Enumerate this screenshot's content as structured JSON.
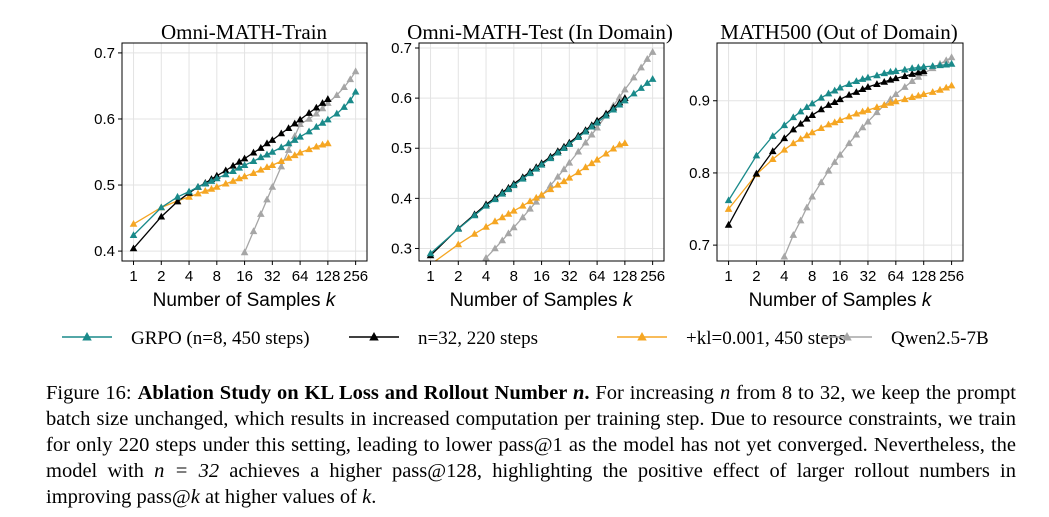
{
  "figure": {
    "legend": [
      {
        "label": "GRPO (n=8, 450 steps)",
        "color": "#1a8a8a"
      },
      {
        "label": "n=32, 220 steps",
        "color": "#000000"
      },
      {
        "label": "+kl=0.001, 450 steps",
        "color": "#f5a623"
      },
      {
        "label": "Qwen2.5-7B",
        "color": "#a6a6a6"
      }
    ],
    "caption": {
      "figure_label": "Figure 16:",
      "bold_title": "Ablation Study on KL Loss and Rollout Number ",
      "bold_var": "n",
      "bold_end": ".",
      "t1": " For increasing ",
      "v1": "n",
      "t2": " from 8 to 32, we keep the prompt batch size unchanged, which results in increased computation per training step. Due to resource constraints, we train for only 220 steps under this setting, leading to lower pass@1 as the model has not yet converged. Nevertheless, the model with ",
      "v2": "n = 32",
      "t3": " achieves a higher pass@128, highlighting the positive effect of larger rollout numbers in improving pass@",
      "v3": "k",
      "t4": " at higher values of ",
      "v4": "k",
      "t5": "."
    }
  },
  "chart_data": [
    {
      "type": "line",
      "title": "Omni-MATH-Train",
      "xlabel": "Number of Samples ",
      "xlabel_var": "k",
      "ylabel": "",
      "xscale": "log2",
      "xlim": [
        0.75,
        340
      ],
      "ylim": [
        0.385,
        0.715
      ],
      "grid": true,
      "xticks": [
        1,
        2,
        4,
        8,
        16,
        32,
        64,
        128,
        256
      ],
      "xtick_labels": [
        "1",
        "2",
        "4",
        "8",
        "16",
        "32",
        "64",
        "128",
        "256"
      ],
      "yticks": [
        0.4,
        0.5,
        0.6,
        0.7
      ],
      "ytick_labels": [
        "0.4",
        "0.5",
        "0.6",
        "0.7"
      ],
      "series": [
        {
          "name": "GRPO (n=8, 450 steps)",
          "color": "#1a8a8a",
          "k": [
            1,
            2,
            3,
            4,
            5,
            6,
            7,
            8,
            10,
            12,
            14,
            16,
            20,
            24,
            28,
            32,
            40,
            48,
            56,
            64,
            80,
            96,
            112,
            128,
            160,
            192,
            224,
            256
          ],
          "values": [
            0.424,
            0.466,
            0.482,
            0.49,
            0.497,
            0.502,
            0.506,
            0.51,
            0.516,
            0.521,
            0.526,
            0.53,
            0.536,
            0.542,
            0.546,
            0.55,
            0.557,
            0.563,
            0.568,
            0.573,
            0.581,
            0.588,
            0.594,
            0.599,
            0.608,
            0.618,
            0.628,
            0.641
          ]
        },
        {
          "name": "n=32, 220 steps",
          "color": "#000000",
          "k": [
            1,
            2,
            3,
            4,
            5,
            6,
            7,
            8,
            10,
            12,
            14,
            16,
            20,
            24,
            28,
            32,
            40,
            48,
            56,
            64,
            80,
            96,
            112,
            128
          ],
          "values": [
            0.404,
            0.452,
            0.475,
            0.488,
            0.497,
            0.503,
            0.509,
            0.514,
            0.522,
            0.529,
            0.535,
            0.54,
            0.549,
            0.556,
            0.563,
            0.568,
            0.578,
            0.586,
            0.593,
            0.599,
            0.609,
            0.617,
            0.624,
            0.63
          ]
        },
        {
          "name": "+kl=0.001, 450 steps",
          "color": "#f5a623",
          "k": [
            1,
            2,
            3,
            4,
            5,
            6,
            7,
            8,
            10,
            12,
            14,
            16,
            20,
            24,
            28,
            32,
            40,
            48,
            56,
            64,
            80,
            96,
            112,
            128
          ],
          "values": [
            0.441,
            0.466,
            0.476,
            0.482,
            0.487,
            0.491,
            0.494,
            0.497,
            0.502,
            0.506,
            0.51,
            0.513,
            0.518,
            0.523,
            0.527,
            0.53,
            0.536,
            0.541,
            0.545,
            0.549,
            0.554,
            0.558,
            0.561,
            0.563
          ]
        },
        {
          "name": "Qwen2.5-7B",
          "color": "#a6a6a6",
          "k": [
            16,
            20,
            24,
            28,
            32,
            40,
            48,
            56,
            64,
            80,
            96,
            112,
            128,
            160,
            192,
            224,
            256
          ],
          "values": [
            0.398,
            0.43,
            0.456,
            0.478,
            0.497,
            0.528,
            0.553,
            0.574,
            0.592,
            0.6,
            0.608,
            0.616,
            0.624,
            0.636,
            0.648,
            0.66,
            0.672
          ]
        }
      ]
    },
    {
      "type": "line",
      "title": "Omni-MATH-Test (In Domain)",
      "xlabel": "Number of Samples ",
      "xlabel_var": "k",
      "ylabel": "",
      "xscale": "log2",
      "xlim": [
        0.75,
        340
      ],
      "ylim": [
        0.275,
        0.71
      ],
      "grid": true,
      "xticks": [
        1,
        2,
        4,
        8,
        16,
        32,
        64,
        128,
        256
      ],
      "xtick_labels": [
        "1",
        "2",
        "4",
        "8",
        "16",
        "32",
        "64",
        "128",
        "256"
      ],
      "yticks": [
        0.3,
        0.4,
        0.5,
        0.6,
        0.7
      ],
      "ytick_labels": [
        "0.3",
        "0.4",
        "0.5",
        "0.6",
        "0.7"
      ],
      "series": [
        {
          "name": "GRPO (n=8, 450 steps)",
          "color": "#1a8a8a",
          "k": [
            1,
            2,
            3,
            4,
            5,
            6,
            7,
            8,
            10,
            12,
            14,
            16,
            20,
            24,
            28,
            32,
            40,
            48,
            56,
            64,
            80,
            96,
            112,
            128,
            160,
            192,
            224,
            256
          ],
          "values": [
            0.29,
            0.339,
            0.366,
            0.385,
            0.398,
            0.409,
            0.418,
            0.426,
            0.439,
            0.45,
            0.459,
            0.467,
            0.48,
            0.491,
            0.5,
            0.508,
            0.522,
            0.533,
            0.543,
            0.551,
            0.565,
            0.577,
            0.587,
            0.595,
            0.609,
            0.62,
            0.63,
            0.638
          ]
        },
        {
          "name": "n=32, 220 steps",
          "color": "#000000",
          "k": [
            1,
            2,
            3,
            4,
            5,
            6,
            7,
            8,
            10,
            12,
            14,
            16,
            20,
            24,
            28,
            32,
            40,
            48,
            56,
            64,
            80,
            96,
            112,
            128
          ],
          "values": [
            0.286,
            0.34,
            0.368,
            0.388,
            0.401,
            0.412,
            0.421,
            0.429,
            0.442,
            0.453,
            0.462,
            0.47,
            0.483,
            0.494,
            0.503,
            0.511,
            0.525,
            0.536,
            0.546,
            0.555,
            0.569,
            0.581,
            0.591,
            0.6
          ]
        },
        {
          "name": "+kl=0.001, 450 steps",
          "color": "#f5a623",
          "k": [
            1,
            2,
            3,
            4,
            5,
            6,
            7,
            8,
            10,
            12,
            14,
            16,
            20,
            24,
            28,
            32,
            40,
            48,
            56,
            64,
            80,
            96,
            112,
            128
          ],
          "values": [
            0.268,
            0.308,
            0.329,
            0.343,
            0.354,
            0.362,
            0.369,
            0.375,
            0.385,
            0.394,
            0.401,
            0.407,
            0.418,
            0.427,
            0.434,
            0.441,
            0.452,
            0.462,
            0.47,
            0.477,
            0.489,
            0.499,
            0.507,
            0.51
          ]
        },
        {
          "name": "Qwen2.5-7B",
          "color": "#a6a6a6",
          "k": [
            4,
            5,
            6,
            7,
            8,
            10,
            12,
            14,
            16,
            20,
            24,
            28,
            32,
            40,
            48,
            56,
            64,
            80,
            96,
            112,
            128,
            160,
            192,
            224,
            256
          ],
          "values": [
            0.281,
            0.3,
            0.316,
            0.33,
            0.342,
            0.362,
            0.379,
            0.393,
            0.405,
            0.426,
            0.443,
            0.458,
            0.471,
            0.493,
            0.511,
            0.527,
            0.541,
            0.565,
            0.585,
            0.602,
            0.617,
            0.641,
            0.661,
            0.678,
            0.692
          ]
        }
      ]
    },
    {
      "type": "line",
      "title": "MATH500 (Out of Domain)",
      "xlabel": "Number of Samples ",
      "xlabel_var": "k",
      "ylabel": "",
      "xscale": "log2",
      "xlim": [
        0.75,
        340
      ],
      "ylim": [
        0.678,
        0.98
      ],
      "grid": true,
      "xticks": [
        1,
        2,
        4,
        8,
        16,
        32,
        64,
        128,
        256
      ],
      "xtick_labels": [
        "1",
        "2",
        "4",
        "8",
        "16",
        "32",
        "64",
        "128",
        "256"
      ],
      "yticks": [
        0.7,
        0.8,
        0.9
      ],
      "ytick_labels": [
        "0.7",
        "0.8",
        "0.9"
      ],
      "series": [
        {
          "name": "GRPO (n=8, 450 steps)",
          "color": "#1a8a8a",
          "k": [
            1,
            2,
            3,
            4,
            5,
            6,
            7,
            8,
            10,
            12,
            14,
            16,
            20,
            24,
            28,
            32,
            40,
            48,
            56,
            64,
            80,
            96,
            112,
            128,
            160,
            192,
            224,
            256
          ],
          "values": [
            0.762,
            0.824,
            0.851,
            0.866,
            0.877,
            0.885,
            0.891,
            0.896,
            0.904,
            0.91,
            0.914,
            0.918,
            0.923,
            0.927,
            0.93,
            0.932,
            0.935,
            0.938,
            0.94,
            0.941,
            0.943,
            0.945,
            0.946,
            0.947,
            0.948,
            0.949,
            0.95,
            0.951
          ]
        },
        {
          "name": "n=32, 220 steps",
          "color": "#000000",
          "k": [
            1,
            2,
            3,
            4,
            5,
            6,
            7,
            8,
            10,
            12,
            14,
            16,
            20,
            24,
            28,
            32,
            40,
            48,
            56,
            64,
            80,
            96,
            112,
            128
          ],
          "values": [
            0.728,
            0.799,
            0.83,
            0.848,
            0.86,
            0.868,
            0.875,
            0.88,
            0.888,
            0.894,
            0.898,
            0.902,
            0.908,
            0.912,
            0.916,
            0.919,
            0.923,
            0.926,
            0.929,
            0.931,
            0.934,
            0.937,
            0.939,
            0.941
          ]
        },
        {
          "name": "+kl=0.001, 450 steps",
          "color": "#f5a623",
          "k": [
            1,
            2,
            3,
            4,
            5,
            6,
            7,
            8,
            10,
            12,
            14,
            16,
            20,
            24,
            28,
            32,
            40,
            48,
            56,
            64,
            80,
            96,
            112,
            128,
            160,
            192,
            224,
            256
          ],
          "values": [
            0.75,
            0.798,
            0.819,
            0.832,
            0.841,
            0.847,
            0.852,
            0.856,
            0.862,
            0.867,
            0.87,
            0.873,
            0.878,
            0.882,
            0.885,
            0.887,
            0.891,
            0.894,
            0.897,
            0.899,
            0.902,
            0.905,
            0.907,
            0.909,
            0.912,
            0.915,
            0.918,
            0.921
          ]
        },
        {
          "name": "Qwen2.5-7B",
          "color": "#a6a6a6",
          "k": [
            4,
            5,
            6,
            7,
            8,
            10,
            12,
            14,
            16,
            20,
            24,
            28,
            32,
            40,
            48,
            56,
            64,
            80,
            96,
            112,
            128,
            160,
            192,
            224,
            256
          ],
          "values": [
            0.684,
            0.714,
            0.734,
            0.752,
            0.767,
            0.787,
            0.803,
            0.815,
            0.825,
            0.841,
            0.853,
            0.863,
            0.871,
            0.884,
            0.894,
            0.902,
            0.909,
            0.919,
            0.927,
            0.933,
            0.938,
            0.945,
            0.951,
            0.956,
            0.96
          ]
        }
      ]
    }
  ]
}
